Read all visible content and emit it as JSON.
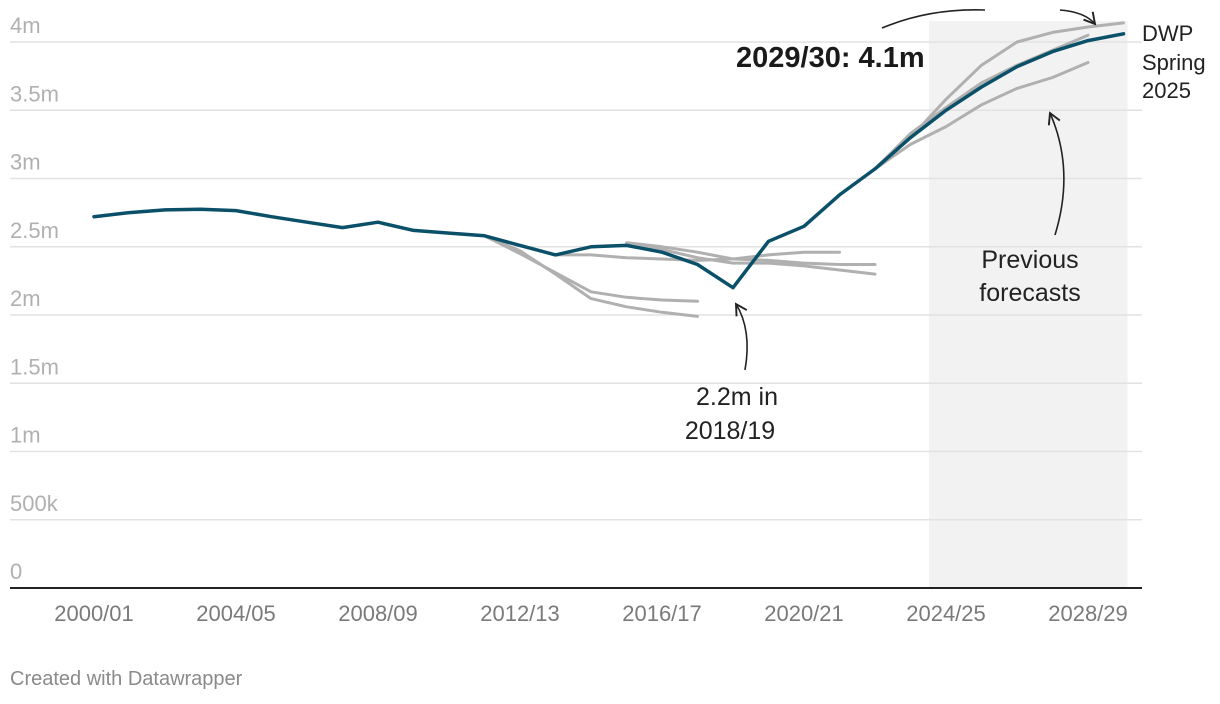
{
  "footer": "Created with Datawrapper",
  "chart_data": {
    "type": "line",
    "title": "",
    "xlabel": "",
    "ylabel": "",
    "ylim": [
      0,
      4000000
    ],
    "y_ticks": [
      {
        "value": 0,
        "label": "0"
      },
      {
        "value": 500000,
        "label": "500k"
      },
      {
        "value": 1000000,
        "label": "1m"
      },
      {
        "value": 1500000,
        "label": "1.5m"
      },
      {
        "value": 2000000,
        "label": "2m"
      },
      {
        "value": 2500000,
        "label": "2.5m"
      },
      {
        "value": 3000000,
        "label": "3m"
      },
      {
        "value": 3500000,
        "label": "3.5m"
      },
      {
        "value": 4000000,
        "label": "4m"
      }
    ],
    "x_categories": [
      "2000/01",
      "2001/02",
      "2002/03",
      "2003/04",
      "2004/05",
      "2005/06",
      "2006/07",
      "2007/08",
      "2008/09",
      "2009/10",
      "2010/11",
      "2011/12",
      "2012/13",
      "2013/14",
      "2014/15",
      "2015/16",
      "2016/17",
      "2017/18",
      "2018/19",
      "2019/20",
      "2020/21",
      "2021/22",
      "2022/23",
      "2023/24",
      "2024/25",
      "2025/26",
      "2026/27",
      "2027/28",
      "2028/29",
      "2029/30"
    ],
    "x_tick_labels": [
      "2000/01",
      "2004/05",
      "2008/09",
      "2012/13",
      "2016/17",
      "2020/21",
      "2024/25",
      "2028/29"
    ],
    "forecast_shade": {
      "from": "2024/25",
      "to": "2029/30"
    },
    "grid": true,
    "series": [
      {
        "role": "main",
        "color": "#0b5069",
        "start": "2000/01",
        "values": [
          2720000,
          2750000,
          2770000,
          2775000,
          2765000,
          2720000,
          2680000,
          2640000,
          2680000,
          2620000,
          2600000,
          2580000,
          2510000,
          2440000,
          2500000,
          2510000,
          2460000,
          2370000,
          2200000,
          2540000,
          2650000,
          2880000,
          3070000,
          3300000,
          3500000,
          3670000,
          3820000,
          3930000,
          4010000,
          4060000
        ]
      },
      {
        "role": "previous",
        "color": "#b0b0b0",
        "start": "2011/12",
        "values": [
          2580000,
          2450000,
          2310000,
          2170000,
          2130000,
          2110000,
          2100000
        ]
      },
      {
        "role": "previous",
        "color": "#b0b0b0",
        "start": "2011/12",
        "values": [
          2580000,
          2470000,
          2300000,
          2120000,
          2060000,
          2020000,
          1990000
        ]
      },
      {
        "role": "previous",
        "color": "#b0b0b0",
        "start": "2012/13",
        "values": [
          2510000,
          2440000,
          2440000,
          2420000,
          2410000,
          2400000,
          2410000,
          2440000,
          2460000,
          2460000
        ]
      },
      {
        "role": "previous",
        "color": "#b0b0b0",
        "start": "2015/16",
        "values": [
          2530000,
          2500000,
          2460000,
          2410000,
          2400000,
          2380000,
          2370000,
          2370000
        ]
      },
      {
        "role": "previous",
        "color": "#b0b0b0",
        "start": "2015/16",
        "values": [
          2510000,
          2480000,
          2420000,
          2380000,
          2380000,
          2360000,
          2330000,
          2300000
        ]
      },
      {
        "role": "previous",
        "color": "#b0b0b0",
        "start": "2022/23",
        "values": [
          3070000,
          3250000,
          3380000,
          3540000,
          3660000,
          3740000,
          3850000
        ]
      },
      {
        "role": "previous",
        "color": "#b0b0b0",
        "start": "2022/23",
        "values": [
          3070000,
          3330000,
          3520000,
          3700000,
          3830000,
          3940000,
          4050000
        ]
      },
      {
        "role": "previous",
        "color": "#b0b0b0",
        "start": "2022/23",
        "values": [
          3070000,
          3300000,
          3580000,
          3830000,
          4000000,
          4070000,
          4110000,
          4140000
        ]
      }
    ],
    "annotations": {
      "main_label": "2029/30: 4.1m",
      "dwp_lines": [
        "DWP",
        "Spring",
        "2025"
      ],
      "previous_lines": [
        "Previous",
        "forecasts"
      ],
      "low_lines": [
        "2.2m in",
        "2018/19"
      ]
    }
  }
}
